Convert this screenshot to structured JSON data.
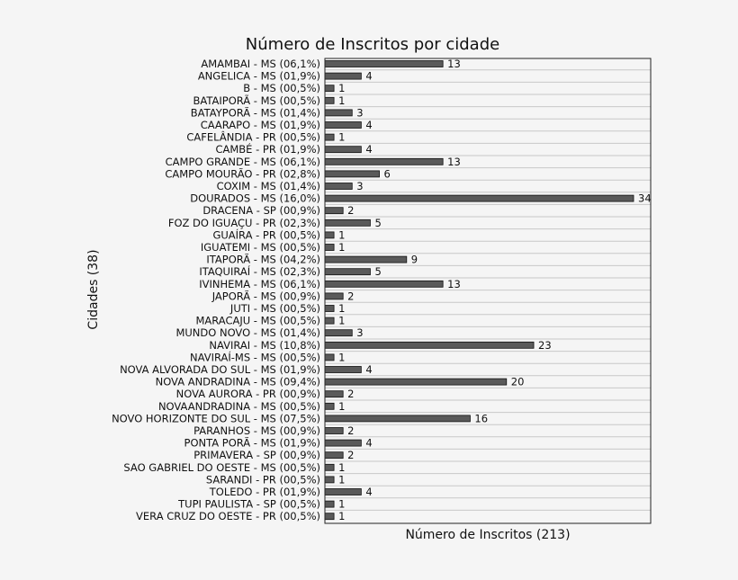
{
  "chart_data": {
    "type": "bar",
    "orientation": "horizontal",
    "title": "Número de Inscritos por cidade",
    "xlabel": "Número de Inscritos (213)",
    "ylabel": "Cidades (38)",
    "xlim": [
      0,
      34
    ],
    "grid": "horizontal lines",
    "bar_color": "#5a5a5a",
    "categories": [
      "AMAMBAI - MS (06,1%)",
      "ANGELICA - MS (01,9%)",
      "B - MS (00,5%)",
      "BATAIPORÃ - MS (00,5%)",
      "BATAYPORÃ - MS (01,4%)",
      "CAARAPO - MS (01,9%)",
      "CAFELÂNDIA - PR (00,5%)",
      "CAMBÉ - PR (01,9%)",
      "CAMPO GRANDE - MS (06,1%)",
      "CAMPO MOURÃO - PR (02,8%)",
      "COXIM - MS (01,4%)",
      "DOURADOS - MS (16,0%)",
      "DRACENA - SP (00,9%)",
      "FOZ DO IGUAÇU - PR (02,3%)",
      "GUAÍRA - PR (00,5%)",
      "IGUATEMI - MS (00,5%)",
      "ITAPORÃ - MS (04,2%)",
      "ITAQUIRAÍ - MS (02,3%)",
      "IVINHEMA - MS (06,1%)",
      "JAPORÃ - MS (00,9%)",
      "JUTI - MS (00,5%)",
      "MARACAJU - MS (00,5%)",
      "MUNDO NOVO - MS (01,4%)",
      "NAVIRAI - MS (10,8%)",
      "NAVIRAÍ-MS - MS (00,5%)",
      "NOVA ALVORADA DO SUL - MS (01,9%)",
      "NOVA ANDRADINA - MS (09,4%)",
      "NOVA AURORA - PR (00,9%)",
      "NOVAANDRADINA - MS (00,5%)",
      "NOVO HORIZONTE DO SUL - MS (07,5%)",
      "PARANHOS - MS (00,9%)",
      "PONTA PORÃ - MS (01,9%)",
      "PRIMAVERA - SP (00,9%)",
      "SAO GABRIEL DO OESTE - MS (00,5%)",
      "SARANDI - PR (00,5%)",
      "TOLEDO - PR (01,9%)",
      "TUPI PAULISTA - SP (00,5%)",
      "VERA CRUZ DO OESTE - PR (00,5%)"
    ],
    "values": [
      13,
      4,
      1,
      1,
      3,
      4,
      1,
      4,
      13,
      6,
      3,
      34,
      2,
      5,
      1,
      1,
      9,
      5,
      13,
      2,
      1,
      1,
      3,
      23,
      1,
      4,
      20,
      2,
      1,
      16,
      2,
      4,
      2,
      1,
      1,
      4,
      1,
      1
    ]
  }
}
